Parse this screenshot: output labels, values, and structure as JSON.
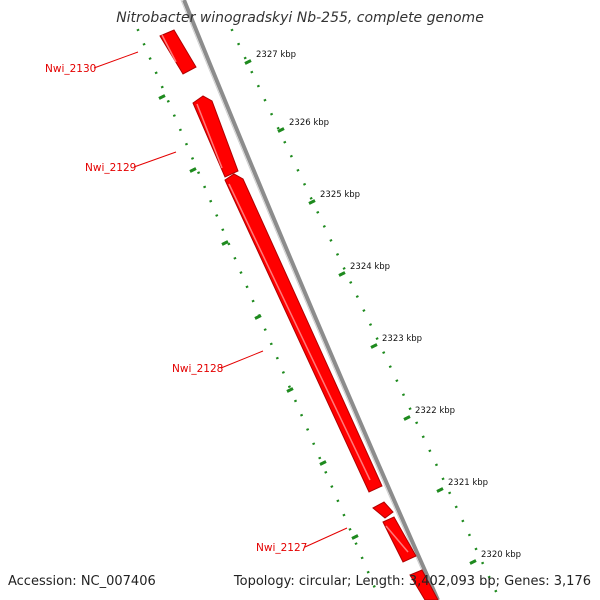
{
  "title": "Nitrobacter winogradskyi Nb-255, complete genome",
  "footer": {
    "accession": "Accession: NC_007406",
    "summary": "Topology: circular; Length: 3,402,093 bp; Genes: 3,176"
  },
  "colors": {
    "gene": "#ff0000",
    "gene_shade": "#b00000",
    "gene_highlight": "#ff7a7a",
    "tick": "#1e8a1e",
    "backbone": "#8c8c8c",
    "label": "#e40000"
  },
  "scale_ticks": [
    {
      "label": "2327 kbp"
    },
    {
      "label": "2326 kbp"
    },
    {
      "label": "2325 kbp"
    },
    {
      "label": "2324 kbp"
    },
    {
      "label": "2323 kbp"
    },
    {
      "label": "2322 kbp"
    },
    {
      "label": "2321 kbp"
    },
    {
      "label": "2320 kbp"
    }
  ],
  "genes": [
    {
      "name": "Nwi_2130"
    },
    {
      "name": "Nwi_2129"
    },
    {
      "name": "Nwi_2128"
    },
    {
      "name": "Nwi_2127"
    }
  ]
}
